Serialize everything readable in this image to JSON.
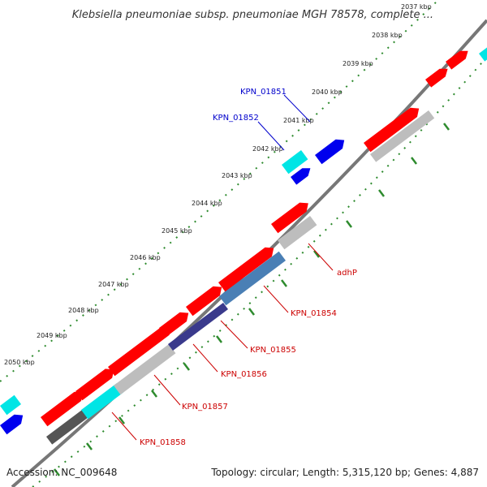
{
  "title": "Klebsiella pneumoniae subsp. pneumoniae MGH 78578, complete ...",
  "footer": {
    "accession": "Accession: NC_009648",
    "summary": "Topology: circular; Length: 5,315,120 bp; Genes: 4,887"
  },
  "ticks": [
    "2037 kbp",
    "2038 kbp",
    "2039 kbp",
    "2040 kbp",
    "2041 kbp",
    "2042 kbp",
    "2043 kbp",
    "2044 kbp",
    "2045 kbp",
    "2046 kbp",
    "2047 kbp",
    "2048 kbp",
    "2049 kbp",
    "2050 kbp"
  ],
  "genes": [
    {
      "name": "KPN_01851",
      "color": "#0000cc"
    },
    {
      "name": "KPN_01852",
      "color": "#0000cc"
    },
    {
      "name": "adhP",
      "color": "#cc0000"
    },
    {
      "name": "KPN_01854",
      "color": "#cc0000"
    },
    {
      "name": "KPN_01855",
      "color": "#cc0000"
    },
    {
      "name": "KPN_01856",
      "color": "#cc0000"
    },
    {
      "name": "KPN_01857",
      "color": "#cc0000"
    },
    {
      "name": "KPN_01858",
      "color": "#cc0000"
    }
  ],
  "colors": {
    "forward_cds": "#ff0000",
    "reverse_cds": "#0000ee",
    "trna": "#00e5e5",
    "feature_grey": "#bdbdbd",
    "feature_dark": "#555555",
    "feature_steel": "#4a7fb5",
    "feature_navy": "#3a3a8c",
    "backbone": "#777777",
    "tick_green": "#2e8b2e"
  }
}
